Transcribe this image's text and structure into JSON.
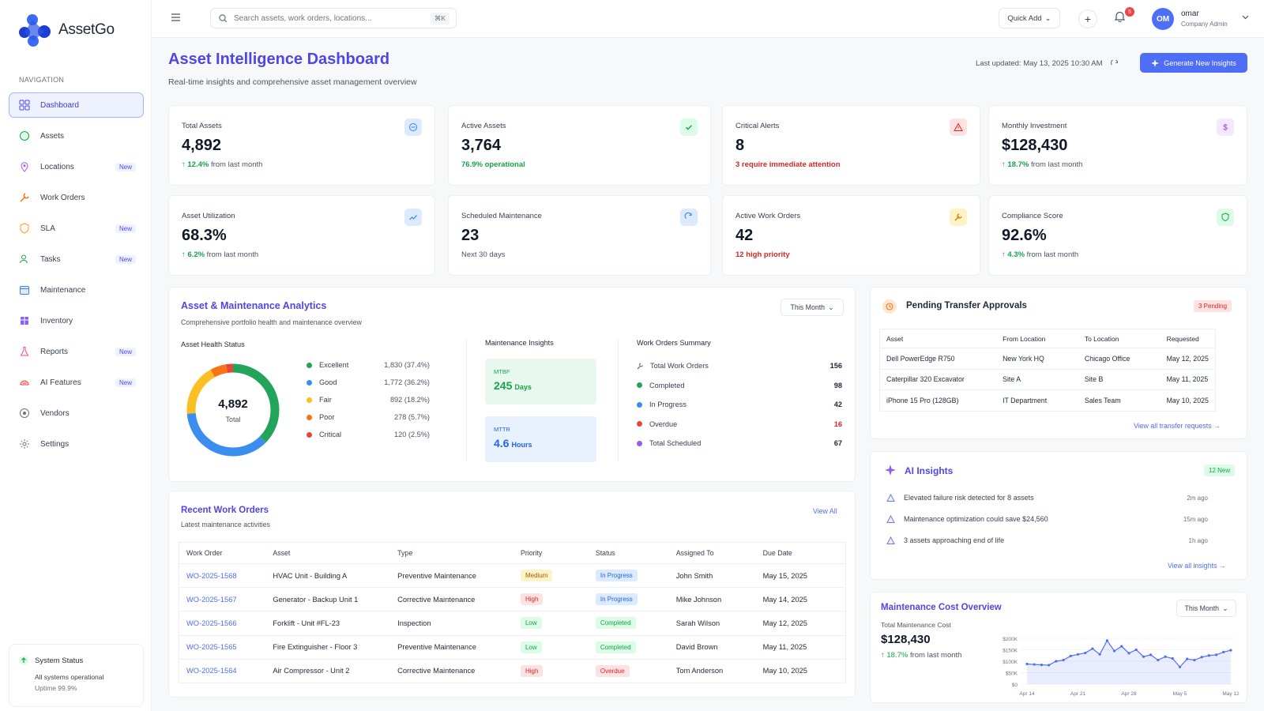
{
  "app": {
    "name": "AssetGo"
  },
  "nav": {
    "section_label": "NAVIGATION",
    "items": [
      {
        "label": "Dashboard",
        "icon": "dashboard-icon",
        "badge": "",
        "active": true
      },
      {
        "label": "Assets",
        "icon": "box-icon",
        "badge": ""
      },
      {
        "label": "Locations",
        "icon": "pin-icon",
        "badge": "New"
      },
      {
        "label": "Work Orders",
        "icon": "wrench-icon",
        "badge": ""
      },
      {
        "label": "SLA",
        "icon": "shield-icon",
        "badge": "New"
      },
      {
        "label": "Tasks",
        "icon": "user-check-icon",
        "badge": "New"
      },
      {
        "label": "Maintenance",
        "icon": "calendar-icon",
        "badge": ""
      },
      {
        "label": "Inventory",
        "icon": "package-icon",
        "badge": ""
      },
      {
        "label": "Reports",
        "icon": "flask-icon",
        "badge": "New"
      },
      {
        "label": "AI Features",
        "icon": "brain-icon",
        "badge": "New"
      },
      {
        "label": "Vendors",
        "icon": "vendor-icon",
        "badge": ""
      },
      {
        "label": "Settings",
        "icon": "gear-icon",
        "badge": ""
      }
    ]
  },
  "system_status": {
    "title": "System Status",
    "line1": "All systems operational",
    "line2": "Uptime 99.9%"
  },
  "topbar": {
    "search_placeholder": "Search assets, work orders, locations...",
    "shortcut": "⌘K",
    "quick_add": "Quick Add",
    "notifications": "5",
    "user": {
      "initials": "OM",
      "name": "omar",
      "role": "Company Admin"
    }
  },
  "header": {
    "title": "Asset Intelligence Dashboard",
    "subtitle": "Real-time insights and comprehensive asset management overview",
    "updated": "Last updated: May 13, 2025 10:30 AM",
    "generate": "Generate New Insights"
  },
  "stats": [
    {
      "label": "Total Assets",
      "value": "4,892",
      "delta": "12.4%",
      "tail": " from last month"
    },
    {
      "label": "Active Assets",
      "value": "3,764",
      "note": "76.9% operational"
    },
    {
      "label": "Critical Alerts",
      "value": "8",
      "note": "3 require immediate attention"
    },
    {
      "label": "Monthly Investment",
      "value": "$128,430",
      "delta": "18.7%",
      "tail": " from last month"
    },
    {
      "label": "Asset Utilization",
      "value": "68.3%",
      "delta": "6.2%",
      "tail": " from last month"
    },
    {
      "label": "Scheduled Maintenance",
      "value": "23",
      "note": "Next 30 days"
    },
    {
      "label": "Active Work Orders",
      "value": "42",
      "note": "12 high priority"
    },
    {
      "label": "Compliance Score",
      "value": "92.6%",
      "delta": "4.3%",
      "tail": " from last month"
    }
  ],
  "analytics": {
    "title": "Asset & Maintenance Analytics",
    "subtitle": "Comprehensive portfolio health and maintenance overview",
    "period": "This Month",
    "health_title": "Asset Health Status",
    "donut_total": "4,892",
    "donut_label": "Total",
    "health": [
      {
        "label": "Excellent",
        "value": "1,830 (37.4%)",
        "pct": 37.4,
        "color": "#22a55b"
      },
      {
        "label": "Good",
        "value": "1,772 (36.2%)",
        "pct": 36.2,
        "color": "#3b8ef0"
      },
      {
        "label": "Fair",
        "value": "892 (18.2%)",
        "pct": 18.2,
        "color": "#fbbf24"
      },
      {
        "label": "Poor",
        "value": "278 (5.7%)",
        "pct": 5.7,
        "color": "#f97316"
      },
      {
        "label": "Critical",
        "value": "120 (2.5%)",
        "pct": 2.5,
        "color": "#e5483b"
      }
    ],
    "insights_title": "Maintenance Insights",
    "mtbf": {
      "k": "MTBF",
      "n": "245",
      "u": "Days"
    },
    "mttr": {
      "k": "MTTR",
      "n": "4.6",
      "u": "Hours"
    },
    "summary_title": "Work Orders Summary",
    "summary": [
      {
        "label": "Total Work Orders",
        "value": "156",
        "color": ""
      },
      {
        "label": "Completed",
        "value": "98",
        "color": "#22a55b"
      },
      {
        "label": "In Progress",
        "value": "42",
        "color": "#3b8ef0"
      },
      {
        "label": "Overdue",
        "value": "16",
        "color": "#e5483b"
      },
      {
        "label": "Total Scheduled",
        "value": "67",
        "color": "#9b5de5"
      }
    ]
  },
  "recent": {
    "title": "Recent Work Orders",
    "subtitle": "Latest maintenance activities",
    "view_all": "View All",
    "columns": [
      "Work Order",
      "Asset",
      "Type",
      "Priority",
      "Status",
      "Assigned To",
      "Due Date"
    ],
    "rows": [
      {
        "id": "WO-2025-1568",
        "asset": "HVAC Unit - Building A",
        "type": "Preventive Maintenance",
        "priority": "Medium",
        "status": "In Progress",
        "assigned": "John Smith",
        "due": "May 15, 2025"
      },
      {
        "id": "WO-2025-1567",
        "asset": "Generator - Backup Unit 1",
        "type": "Corrective Maintenance",
        "priority": "High",
        "status": "In Progress",
        "assigned": "Mike Johnson",
        "due": "May 14, 2025"
      },
      {
        "id": "WO-2025-1566",
        "asset": "Forklift - Unit #FL-23",
        "type": "Inspection",
        "priority": "Low",
        "status": "Completed",
        "assigned": "Sarah Wilson",
        "due": "May 12, 2025"
      },
      {
        "id": "WO-2025-1565",
        "asset": "Fire Extinguisher - Floor 3",
        "type": "Preventive Maintenance",
        "priority": "Low",
        "status": "Completed",
        "assigned": "David Brown",
        "due": "May 11, 2025"
      },
      {
        "id": "WO-2025-1564",
        "asset": "Air Compressor - Unit 2",
        "type": "Corrective Maintenance",
        "priority": "High",
        "status": "Overdue",
        "assigned": "Tom Anderson",
        "due": "May 10, 2025"
      }
    ]
  },
  "transfers": {
    "title": "Pending Transfer Approvals",
    "badge": "3 Pending",
    "columns": [
      "Asset",
      "From Location",
      "To Location",
      "Requested"
    ],
    "rows": [
      {
        "asset": "Dell PowerEdge R750",
        "from": "New York HQ",
        "to": "Chicago Office",
        "date": "May 12, 2025"
      },
      {
        "asset": "Caterpillar 320 Excavator",
        "from": "Site A",
        "to": "Site B",
        "date": "May 11, 2025"
      },
      {
        "asset": "iPhone 15 Pro (128GB)",
        "from": "IT Department",
        "to": "Sales Team",
        "date": "May 10, 2025"
      }
    ],
    "link": "View all transfer requests →"
  },
  "ai": {
    "title": "AI Insights",
    "badge": "12 New",
    "items": [
      {
        "text": "Elevated failure risk detected for 8 assets",
        "time": "2m ago"
      },
      {
        "text": "Maintenance optimization could save $24,560",
        "time": "15m ago"
      },
      {
        "text": "3 assets approaching end of life",
        "time": "1h ago"
      }
    ],
    "link": "View all insights →"
  },
  "cost": {
    "title": "Maintenance Cost Overview",
    "period": "This Month",
    "label": "Total Maintenance Cost",
    "value": "$128,430",
    "delta": "18.7%",
    "tail": " from last month"
  },
  "chart_data": {
    "type": "area",
    "title": "",
    "y_ticks": [
      "$0",
      "$50K",
      "$100K",
      "$150K",
      "$200K"
    ],
    "ylim": [
      0,
      200000
    ],
    "x_ticks": [
      "Apr 14",
      "Apr 21",
      "Apr 28",
      "May 5",
      "May 12"
    ],
    "x": [
      "Apr 14",
      "Apr 15",
      "Apr 16",
      "Apr 17",
      "Apr 18",
      "Apr 19",
      "Apr 20",
      "Apr 21",
      "Apr 22",
      "Apr 23",
      "Apr 24",
      "Apr 25",
      "Apr 26",
      "Apr 27",
      "Apr 28",
      "Apr 29",
      "Apr 30",
      "May 1",
      "May 2",
      "May 3",
      "May 4",
      "May 5",
      "May 6",
      "May 7",
      "May 8",
      "May 9",
      "May 10",
      "May 11",
      "May 12"
    ],
    "values": [
      88000,
      86000,
      84000,
      83000,
      100000,
      105000,
      123000,
      130000,
      136000,
      155000,
      130000,
      190000,
      145000,
      165000,
      135000,
      150000,
      120000,
      128000,
      105000,
      120000,
      112000,
      75000,
      110000,
      105000,
      118000,
      125000,
      128000,
      140000,
      148000
    ],
    "color": "#4f6ef7",
    "grid": true
  }
}
